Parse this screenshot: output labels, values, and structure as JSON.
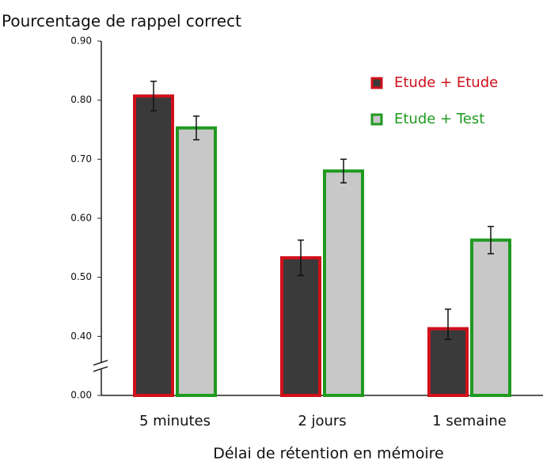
{
  "chart_data": {
    "type": "bar",
    "title": "Pourcentage de rappel correct",
    "x_label": "Délai de rétention en mémoire",
    "categories": [
      "5 minutes",
      "2 jours",
      "1 semaine"
    ],
    "series": [
      {
        "name": "Etude + Etude",
        "color": "#3a3a3a",
        "edge_color": "#d0101a",
        "values": [
          0.807,
          0.533,
          0.413
        ],
        "errors": [
          0.025,
          0.03,
          0.033
        ]
      },
      {
        "name": "Etude + Test",
        "color": "#c8c8c8",
        "edge_color": "#1f9a1f",
        "values": [
          0.753,
          0.68,
          0.563
        ],
        "errors": [
          0.02,
          0.02,
          0.023
        ]
      }
    ],
    "ylim": [
      0,
      0.9
    ],
    "y_break": [
      0,
      0.4
    ],
    "yticks": [
      {
        "value": 0,
        "label": "0.00"
      },
      {
        "value": 0.4,
        "label": "0.40"
      },
      {
        "value": 0.5,
        "label": "0.50"
      },
      {
        "value": 0.6,
        "label": "0.60"
      },
      {
        "value": 0.7,
        "label": "0.70"
      },
      {
        "value": 0.8,
        "label": "0.80"
      },
      {
        "value": 0.9,
        "label": "0.90"
      }
    ],
    "legend": "upper right",
    "grid": false
  }
}
